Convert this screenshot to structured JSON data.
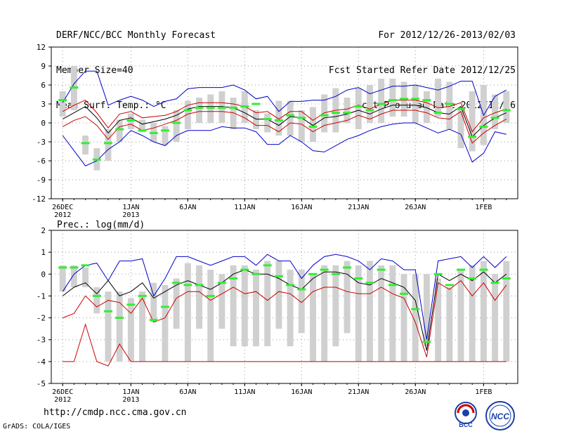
{
  "header": {
    "left": [
      "DERF/NCC/BCC Monthly Forecast",
      "Member Size=40",
      "Mean Surf. Temp.: °C"
    ],
    "right": [
      "For 2012/12/26-2013/02/03",
      "Fcst Started Refer Date 2012/12/25",
      "Fcst Produced Date 2012/12/26"
    ]
  },
  "footer": {
    "url": "http://cmdp.ncc.cma.gov.cn",
    "grads": "GrADS: COLA/IGES",
    "logo_left": "BCC",
    "logo_right": "NCC"
  },
  "colors": {
    "upper": "#0000cc",
    "ens": "#cc0000",
    "mean": "#000000",
    "obs": "#33ee33",
    "box": "#d0d0d0",
    "grid": "#999999"
  },
  "chart_data": [
    {
      "type": "ensemble-boxplot-line",
      "title": "Mean Surf. Temp.: °C",
      "ylim": [
        -12,
        12
      ],
      "yticks": [
        -12,
        -9,
        -6,
        -3,
        0,
        3,
        6,
        9,
        12
      ],
      "xlim": [
        1,
        40
      ],
      "xticks": [
        {
          "day": 1,
          "label": "26DEC",
          "label2": "2012"
        },
        {
          "day": 7,
          "label": "1JAN",
          "label2": "2013"
        },
        {
          "day": 12,
          "label": "6JAN"
        },
        {
          "day": 17,
          "label": "11JAN"
        },
        {
          "day": 22,
          "label": "16JAN"
        },
        {
          "day": 27,
          "label": "21JAN"
        },
        {
          "day": 32,
          "label": "26JAN"
        },
        {
          "day": 38,
          "label": "1FEB"
        }
      ],
      "days": [
        1,
        2,
        3,
        4,
        5,
        6,
        7,
        8,
        9,
        10,
        11,
        12,
        13,
        14,
        15,
        16,
        17,
        18,
        19,
        20,
        21,
        22,
        23,
        24,
        25,
        26,
        27,
        28,
        29,
        30,
        31,
        32,
        33,
        34,
        35,
        36,
        37,
        38,
        39,
        40
      ],
      "box_low": [
        1,
        2,
        -5,
        -7.5,
        -6,
        -3,
        -1,
        -1.5,
        -3,
        -3.5,
        -3,
        -1,
        0,
        0,
        0,
        -1,
        0,
        -1,
        -1.5,
        -2,
        -2,
        -3,
        -3,
        -1.5,
        -1.5,
        0,
        -1,
        0,
        0,
        1,
        1,
        0,
        0,
        1,
        -1,
        -4,
        -4.5,
        -3.5,
        -1,
        0
      ],
      "box_high": [
        5,
        9,
        -2,
        -4,
        -1,
        0.5,
        1.5,
        0.5,
        0,
        -0.5,
        2,
        3.5,
        4,
        4.5,
        5,
        4,
        5,
        2,
        1.5,
        3.5,
        3.5,
        2,
        2.5,
        4.5,
        5.5,
        4,
        5.5,
        6,
        7,
        7,
        6.5,
        6,
        5,
        7,
        6.5,
        2.5,
        5,
        6,
        4.5,
        5
      ],
      "obs": [
        3.6,
        5.6,
        -3.2,
        -5.8,
        -3.2,
        -1,
        0.4,
        -1.2,
        -1.6,
        -1.2,
        0,
        2,
        2.4,
        2.4,
        2.4,
        2.4,
        2.6,
        3,
        0.6,
        0.4,
        1.2,
        0.8,
        -0.6,
        1.2,
        1.6,
        1.6,
        2.6,
        2,
        3,
        3.6,
        3.8,
        3.8,
        3.6,
        1.6,
        3,
        2.2,
        -2.2,
        -0.6,
        0.8,
        2
      ],
      "upper": [
        3.2,
        6.2,
        8.2,
        8.2,
        2.8,
        3.6,
        4.2,
        3.6,
        2.6,
        3.4,
        3.8,
        5.4,
        5.6,
        5.6,
        5.6,
        6,
        5.2,
        3.8,
        4.2,
        1.8,
        3.4,
        3.4,
        3.6,
        3.6,
        4.2,
        5.2,
        5.6,
        4.6,
        5.2,
        5.8,
        5.8,
        6,
        5.6,
        5.2,
        5.8,
        6.6,
        6.6,
        1.2,
        4.2,
        5.2
      ],
      "ens_high": [
        1.8,
        2.8,
        3.6,
        1.6,
        -0.8,
        1.4,
        1.8,
        0.8,
        1,
        1.2,
        1.8,
        2.8,
        3.2,
        3.2,
        3.2,
        3,
        2.6,
        1.6,
        1.8,
        0.6,
        1.8,
        1.8,
        0.4,
        1.6,
        2,
        2.2,
        2.8,
        2.2,
        3,
        3.6,
        3.6,
        3.6,
        3.2,
        2.4,
        2.6,
        3.2,
        -1.4,
        0.8,
        1.6,
        2.2
      ],
      "mean": [
        0.6,
        1.6,
        2.6,
        0.8,
        -1.6,
        0.4,
        0.8,
        -0.2,
        0.2,
        0.6,
        1.2,
        2.2,
        2.6,
        2.6,
        2.6,
        2.4,
        1.6,
        0.6,
        0.6,
        -0.4,
        1,
        0.8,
        -0.4,
        0.8,
        1,
        1.4,
        2,
        1.4,
        2.2,
        2.8,
        2.8,
        2.8,
        2.4,
        1.6,
        1.4,
        2.6,
        -2.2,
        -0.4,
        0.8,
        1.6
      ],
      "ens_low": [
        -0.6,
        0.4,
        1,
        -0.4,
        -2.6,
        -0.6,
        -0.2,
        -1.2,
        -0.8,
        -0.2,
        0.4,
        1.4,
        1.8,
        1.8,
        1.8,
        1.6,
        0.8,
        -0.4,
        -0.4,
        -1.4,
        0,
        -0.2,
        -1.4,
        -0.4,
        0,
        0.4,
        1.2,
        0.6,
        1.4,
        2,
        2,
        2,
        1.6,
        0.8,
        0.6,
        1.8,
        -3.2,
        -1.6,
        -0.4,
        0.6
      ],
      "lower": [
        -2,
        -4.4,
        -6.8,
        -6,
        -4.2,
        -3,
        -1.2,
        -2,
        -3,
        -3.6,
        -2,
        -1.2,
        -1.2,
        -1.2,
        -0.6,
        -0.8,
        -0.8,
        -1.4,
        -3.4,
        -3.4,
        -2,
        -3,
        -4.4,
        -4.6,
        -3.6,
        -2.6,
        -2,
        -1.2,
        -0.6,
        -0.2,
        0,
        0,
        -0.8,
        -1.6,
        -1,
        -1.8,
        -6.2,
        -4.8,
        -1.4,
        -1.8
      ]
    },
    {
      "type": "ensemble-boxplot-line",
      "title": "Prec.: log(mm/d)",
      "ylim": [
        -5,
        2
      ],
      "yticks": [
        -5,
        -4,
        -3,
        -2,
        -1,
        0,
        1,
        2
      ],
      "xlim": [
        1,
        40
      ],
      "xticks": [
        {
          "day": 1,
          "label": "26DEC",
          "label2": "2012"
        },
        {
          "day": 7,
          "label": "1JAN",
          "label2": "2013"
        },
        {
          "day": 12,
          "label": "6JAN"
        },
        {
          "day": 17,
          "label": "11JAN"
        },
        {
          "day": 22,
          "label": "16JAN"
        },
        {
          "day": 27,
          "label": "21JAN"
        },
        {
          "day": 32,
          "label": "26JAN"
        },
        {
          "day": 38,
          "label": "1FEB"
        }
      ],
      "days": [
        1,
        2,
        3,
        4,
        5,
        6,
        7,
        8,
        9,
        10,
        11,
        12,
        13,
        14,
        15,
        16,
        17,
        18,
        19,
        20,
        21,
        22,
        23,
        24,
        25,
        26,
        27,
        28,
        29,
        30,
        31,
        32,
        33,
        34,
        35,
        36,
        37,
        38,
        39,
        40
      ],
      "box_low": [
        -0.8,
        -0.6,
        -0.6,
        -1.8,
        -4,
        -4,
        -4,
        -4,
        -2.2,
        -4,
        -2.5,
        -4,
        -2.5,
        -4,
        -2.5,
        -3.3,
        -3.3,
        -3.3,
        -3.3,
        -2.5,
        -3.3,
        -2.7,
        -4,
        -4,
        -3.3,
        -2.7,
        -4,
        -4,
        -4,
        -4,
        -4,
        -4,
        -3.3,
        -4,
        -4,
        -4,
        -4,
        -4,
        -4,
        -4
      ],
      "box_high": [
        0.4,
        0.4,
        0.3,
        -0.6,
        -0.8,
        -0.8,
        -1.1,
        -0.8,
        -0.4,
        -0.5,
        -0.2,
        0.5,
        0.4,
        0.2,
        0,
        0.4,
        0.4,
        0.2,
        0.6,
        0.6,
        0.2,
        0.2,
        0,
        0.4,
        0.4,
        0.6,
        0.4,
        0.6,
        0.4,
        0.4,
        0,
        0,
        0,
        -0.2,
        -0.6,
        0.2,
        0.4,
        0.6,
        0,
        0.6
      ],
      "obs": [
        0.3,
        0.3,
        0.4,
        -1,
        -1.7,
        -2,
        -1.4,
        -1,
        -2.1,
        -1.5,
        -0.4,
        -0.5,
        -0.5,
        -1,
        -0.4,
        -0.2,
        0.2,
        0,
        0.4,
        -0.1,
        -0.5,
        -0.7,
        0,
        0.2,
        0,
        0.3,
        -0.2,
        -0.4,
        0.2,
        -0.5,
        -0.9,
        -1.6,
        -3.1,
        0,
        -0.5,
        0.2,
        -0.2,
        0.2,
        -0.4,
        -0.2
      ],
      "upper": [
        -0.8,
        0,
        0.4,
        0.5,
        -0.3,
        0.6,
        0.6,
        0.7,
        -1,
        -0.2,
        0.8,
        0.8,
        0.6,
        0.4,
        0.6,
        0.8,
        0.8,
        0.4,
        0.9,
        0.6,
        0.6,
        -0.2,
        0.4,
        0.8,
        0.9,
        0.8,
        0.6,
        0.2,
        0.7,
        0.6,
        0.2,
        0.2,
        -3,
        0.6,
        0.7,
        0.8,
        0.3,
        0.8,
        0.3,
        0.8
      ],
      "mean": [
        -1,
        -0.6,
        -0.4,
        -0.9,
        -0.3,
        -1,
        -0.8,
        -0.4,
        -1.1,
        -0.8,
        -0.5,
        -0.3,
        -0.5,
        -0.7,
        -0.4,
        0,
        0.2,
        0,
        0,
        -0.2,
        -0.5,
        -0.7,
        -0.2,
        0.1,
        0.1,
        0,
        -0.4,
        -0.5,
        -0.2,
        -0.4,
        -0.6,
        -1.2,
        -3.5,
        0,
        -0.3,
        0,
        -0.3,
        0.1,
        -0.4,
        0
      ],
      "ens_low": [
        -2,
        -1.8,
        -1,
        -1.5,
        -1.2,
        -1.3,
        -1.8,
        -1.1,
        -2.2,
        -2,
        -1.1,
        -0.8,
        -0.8,
        -1.2,
        -0.9,
        -0.6,
        -0.9,
        -0.8,
        -1.2,
        -0.8,
        -0.9,
        -1.3,
        -0.8,
        -0.6,
        -0.6,
        -0.8,
        -0.9,
        -0.9,
        -0.6,
        -0.9,
        -1.1,
        -2.2,
        -3.8,
        -0.4,
        -0.7,
        -0.3,
        -1,
        -0.4,
        -1.2,
        -0.5
      ],
      "lower": [
        -4,
        -4,
        -2.3,
        -4,
        -4.2,
        -3.2,
        -4,
        -4,
        -4,
        -4,
        -4,
        -4,
        -4,
        -4,
        -4,
        -4,
        -4,
        -4,
        -4,
        -4,
        -4,
        -4,
        -4,
        -4,
        -4,
        -4,
        -4,
        -4,
        -4,
        -4,
        -4,
        -4,
        -4,
        -4,
        -4,
        -4,
        -4,
        -4,
        -4,
        -4
      ],
      "annotation": "Prec.: log(mm/d)"
    }
  ]
}
